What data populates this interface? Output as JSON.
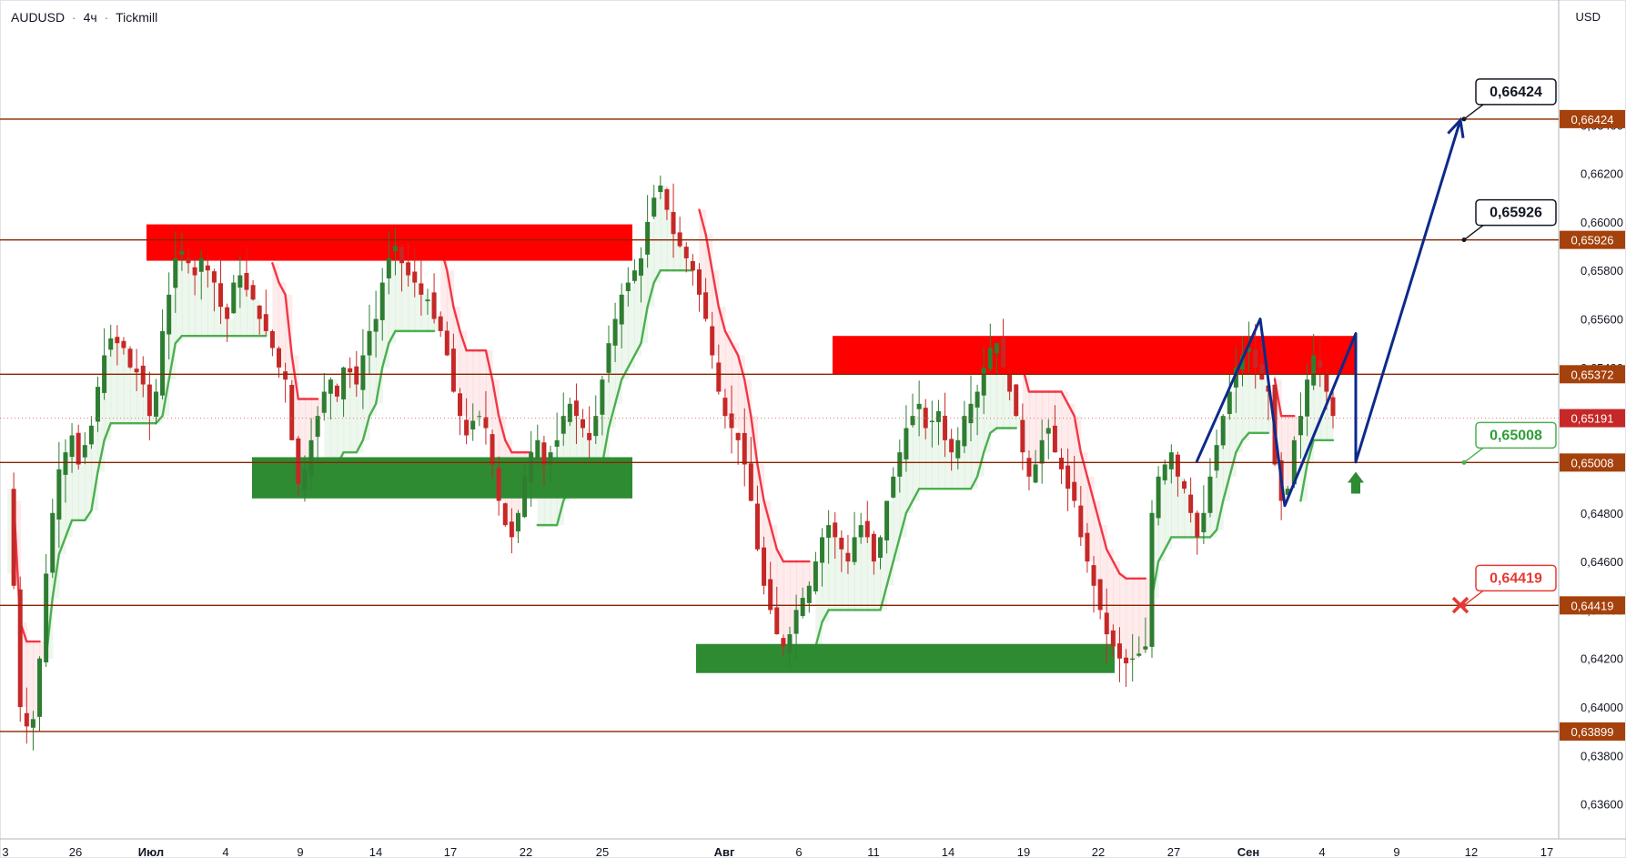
{
  "header": {
    "symbol": "AUDUSD",
    "interval": "4ч",
    "broker": "Tickmill",
    "separator": "·"
  },
  "currency": "USD",
  "colors": {
    "level_line": "#8b2500",
    "level_tag": "#a5410c",
    "bull_candle": "#2e7d32",
    "bear_candle": "#c62828",
    "supertrend_up": "#4caf50",
    "supertrend_down": "#f23645",
    "supply_zone": "#ff0000",
    "demand_zone": "#2e8b32",
    "forecast_path": "#0d2a8a",
    "current_price": "#e57373"
  },
  "chart_data": {
    "type": "candlestick",
    "title": "AUDUSD · 4ч · Tickmill",
    "y_axis": {
      "range": [
        0.6352,
        0.6684
      ],
      "ticks": [
        "0,63600",
        "0,63800",
        "0,64000",
        "0,64200",
        "0,64400",
        "0,64600",
        "0,64800",
        "0,65000",
        "0,65200",
        "0,65400",
        "0,65600",
        "0,65800",
        "0,66000",
        "0,66200",
        "0,66400"
      ],
      "tick_values": [
        0.636,
        0.638,
        0.64,
        0.642,
        0.644,
        0.646,
        0.648,
        0.65,
        0.652,
        0.654,
        0.656,
        0.658,
        0.66,
        0.662,
        0.664
      ]
    },
    "x_axis": {
      "ticks": [
        "3",
        "26",
        "Июл",
        "4",
        "9",
        "14",
        "17",
        "22",
        "25",
        "Авг",
        "6",
        "11",
        "14",
        "19",
        "22",
        "27",
        "Сен",
        "4",
        "9",
        "12",
        "17"
      ],
      "bold_ticks": [
        "Июл",
        "Авг",
        "Сен"
      ]
    },
    "levels": [
      {
        "value": 0.66424,
        "label": "0,66424"
      },
      {
        "value": 0.65926,
        "label": "0,65926"
      },
      {
        "value": 0.65372,
        "label": "0,65372"
      },
      {
        "value": 0.65008,
        "label": "0,65008"
      },
      {
        "value": 0.64419,
        "label": "0,64419"
      },
      {
        "value": 0.63899,
        "label": "0,63899"
      }
    ],
    "current_price": {
      "value": 0.65191,
      "label": "0,65191"
    },
    "callouts": [
      {
        "label": "0,66424",
        "value": 0.66424,
        "style": "target"
      },
      {
        "label": "0,65926",
        "value": 0.65926,
        "style": "target"
      },
      {
        "label": "0,65008",
        "value": 0.65008,
        "style": "entry"
      },
      {
        "label": "0,64419",
        "value": 0.64419,
        "style": "stop"
      }
    ],
    "zones": [
      {
        "type": "supply",
        "x": [
          "26 июн",
          "29 июл"
        ],
        "y": [
          0.6584,
          0.6599
        ]
      },
      {
        "type": "supply",
        "x": [
          "8 авг",
          "3 сен"
        ],
        "y": [
          0.6537,
          0.6553
        ]
      },
      {
        "type": "demand",
        "x": [
          "5 июл",
          "29 июл"
        ],
        "y": [
          0.6486,
          0.6503
        ]
      },
      {
        "type": "demand",
        "x": [
          "1 авг",
          "23 авг"
        ],
        "y": [
          0.6414,
          0.6426
        ]
      }
    ],
    "forecast_path": [
      {
        "x": "28 авг",
        "y": 0.6501
      },
      {
        "x": "31 авг",
        "y": 0.656
      },
      {
        "x": "2 сен",
        "y": 0.6483
      },
      {
        "x": "3 сен",
        "y": 0.6554
      },
      {
        "x": "5 сен",
        "y": 0.6501
      },
      {
        "x": "11 сен",
        "y": 0.6642
      }
    ],
    "signal": {
      "type": "buy-arrow",
      "x": "5 сен",
      "y": 0.6497
    },
    "stop_marker": {
      "x": "11 сен",
      "y": 0.6442
    },
    "supertrend_down_segments": [
      [
        [
          0.6514,
          0.647
        ],
        [
          0.647,
          0.647
        ]
      ],
      [
        [
          0.6606,
          0.6584
        ],
        [
          0.6584,
          0.6576
        ],
        [
          0.6576,
          0.6576
        ],
        [
          0.6576,
          0.6576
        ],
        [
          0.6576,
          0.6576
        ],
        [
          0.6576,
          0.6576
        ],
        [
          0.6576,
          0.6576
        ],
        [
          0.6576,
          0.6576
        ],
        [
          0.6576,
          0.6576
        ],
        [
          0.6576,
          0.6576
        ],
        [
          0.6576,
          0.6576
        ],
        [
          0.6576,
          0.6576
        ],
        [
          0.6576,
          0.6576
        ],
        [
          0.6576,
          0.6576
        ],
        [
          0.6576,
          0.6576
        ],
        [
          0.6576,
          0.6576
        ],
        [
          0.6576,
          0.6576
        ]
      ]
    ],
    "candles_note": "OHLC series sampled from the chart's visible price path",
    "series_path": [
      0.649,
      0.645,
      0.64,
      0.6392,
      0.6395,
      0.642,
      0.6455,
      0.648,
      0.6498,
      0.6505,
      0.6512,
      0.65,
      0.6508,
      0.6516,
      0.6532,
      0.6545,
      0.6552,
      0.655,
      0.6548,
      0.654,
      0.6538,
      0.6533,
      0.652,
      0.653,
      0.6555,
      0.657,
      0.6585,
      0.6588,
      0.6583,
      0.6578,
      0.6585,
      0.658,
      0.6575,
      0.6565,
      0.656,
      0.6575,
      0.6578,
      0.6572,
      0.6568,
      0.656,
      0.6555,
      0.6548,
      0.654,
      0.6535,
      0.651,
      0.6492,
      0.6498,
      0.651,
      0.652,
      0.653,
      0.6535,
      0.6528,
      0.654,
      0.6538,
      0.6533,
      0.6545,
      0.6555,
      0.656,
      0.6575,
      0.6585,
      0.659,
      0.6583,
      0.6578,
      0.6575,
      0.657,
      0.6568,
      0.656,
      0.6555,
      0.6545,
      0.653,
      0.652,
      0.6512,
      0.6518,
      0.652,
      0.6515,
      0.65,
      0.6485,
      0.6475,
      0.647,
      0.648,
      0.6495,
      0.6505,
      0.651,
      0.65,
      0.6505,
      0.651,
      0.652,
      0.6525,
      0.652,
      0.6515,
      0.651,
      0.652,
      0.6535,
      0.655,
      0.656,
      0.657,
      0.6575,
      0.658,
      0.6585,
      0.66,
      0.661,
      0.6615,
      0.6605,
      0.6595,
      0.659,
      0.6585,
      0.658,
      0.657,
      0.656,
      0.6545,
      0.653,
      0.652,
      0.6515,
      0.651,
      0.65,
      0.6485,
      0.6465,
      0.645,
      0.644,
      0.643,
      0.6425,
      0.643,
      0.644,
      0.6445,
      0.645,
      0.646,
      0.647,
      0.6475,
      0.647,
      0.6465,
      0.646,
      0.647,
      0.6475,
      0.647,
      0.646,
      0.647,
      0.6485,
      0.6495,
      0.6505,
      0.6515,
      0.652,
      0.6525,
      0.6515,
      0.6518,
      0.6522,
      0.651,
      0.6505,
      0.651,
      0.652,
      0.6525,
      0.653,
      0.654,
      0.6548,
      0.655,
      0.654,
      0.653,
      0.652,
      0.6505,
      0.6495,
      0.65,
      0.651,
      0.6515,
      0.6505,
      0.6498,
      0.649,
      0.6485,
      0.647,
      0.646,
      0.645,
      0.644,
      0.643,
      0.6425,
      0.642,
      0.6418,
      0.642,
      0.6422,
      0.6425,
      0.648,
      0.6495,
      0.65,
      0.6505,
      0.6495,
      0.649,
      0.648,
      0.647,
      0.648,
      0.6495,
      0.6508,
      0.652,
      0.653,
      0.654,
      0.6545,
      0.6548,
      0.654,
      0.6535,
      0.653,
      0.65,
      0.6485,
      0.649,
      0.651,
      0.652,
      0.6535,
      0.6545,
      0.654,
      0.653,
      0.652
    ]
  }
}
